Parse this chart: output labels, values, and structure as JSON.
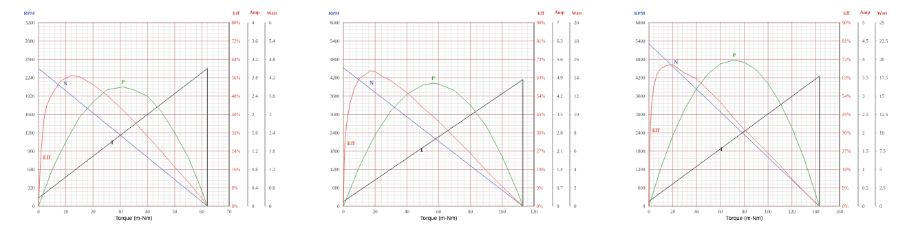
{
  "chart_data": [
    {
      "type": "line",
      "xlabel": "Torque (m-Nm)",
      "ylabel": "RPM",
      "y2label": "Eff",
      "y3label": "Amp",
      "grid": true,
      "xlim": [
        0,
        70
      ],
      "xticks": [
        0,
        10,
        20,
        30,
        40,
        50,
        60,
        70
      ],
      "ylim": [
        0,
        3200
      ],
      "yticks": [
        0,
        320,
        640,
        960,
        1280,
        1600,
        1920,
        2240,
        2560,
        2880,
        3200
      ],
      "y2lim": [
        0,
        80
      ],
      "y2ticks": [
        {
          "value": 0,
          "label": "0%"
        },
        {
          "value": 8,
          "label": "8%"
        },
        {
          "value": 16,
          "label": "16%"
        },
        {
          "value": 24,
          "label": "24%"
        },
        {
          "value": 32,
          "label": "32%"
        },
        {
          "value": 40,
          "label": "40%"
        },
        {
          "value": 48,
          "label": "48%"
        },
        {
          "value": 56,
          "label": "56%"
        },
        {
          "value": 64,
          "label": "64%"
        },
        {
          "value": 72,
          "label": "72%"
        },
        {
          "value": 80,
          "label": "80%"
        }
      ],
      "y3lim": [
        0,
        4
      ],
      "y3ticks": [
        0,
        0.4,
        0.8,
        1.2,
        1.6,
        2,
        2.4,
        2.8,
        3.2,
        3.6,
        4
      ],
      "series": [
        {
          "name": "N",
          "color": "#4a5cb0",
          "x": [
            0,
            62
          ],
          "values": [
            2400,
            0
          ]
        },
        {
          "name": "Eff",
          "color": "#e0584a",
          "axis": "y2",
          "x": [
            0,
            0.5,
            1,
            2,
            3,
            5,
            8,
            12,
            15,
            20,
            25,
            30,
            35,
            40,
            45,
            50,
            55,
            60,
            62
          ],
          "values": [
            0,
            14,
            25,
            38,
            44,
            49,
            54.5,
            57,
            56.5,
            53,
            48.5,
            43,
            37,
            30.5,
            24,
            17,
            10.5,
            3.5,
            0
          ]
        },
        {
          "name": "I",
          "color": "#222222",
          "axis": "y3",
          "x": [
            0,
            62,
            62
          ],
          "values": [
            0.18,
            3.0,
            0
          ]
        }
      ]
    },
    {
      "type": "line",
      "ylabel": "Watt",
      "tick_labels": "y",
      "xlim": [
        0,
        70
      ],
      "ylim": [
        0,
        6
      ],
      "yticks": [
        0,
        0.6,
        1.2,
        1.8,
        2.4,
        3,
        3.6,
        4.2,
        4.8,
        5.4,
        6
      ],
      "series": [
        {
          "name": "P",
          "color": "#4aa04a",
          "x": [
            0,
            5,
            10,
            15,
            20,
            25,
            31,
            35,
            40,
            45,
            50,
            55,
            60,
            62
          ],
          "values": [
            0,
            1.2,
            2.1,
            2.9,
            3.4,
            3.8,
            3.9,
            3.8,
            3.6,
            3.1,
            2.4,
            1.6,
            0.5,
            0
          ]
        }
      ]
    },
    {
      "type": "line",
      "xlabel": "Torque (m-Nm)",
      "ylabel": "RPM",
      "y2label": "Eff",
      "y3label": "Amp",
      "grid": true,
      "xlim": [
        0,
        120
      ],
      "xticks": [
        0,
        20,
        40,
        60,
        80,
        100,
        120
      ],
      "ylim": [
        0,
        6000
      ],
      "yticks": [
        0,
        600,
        1200,
        1800,
        2400,
        3000,
        3600,
        4200,
        4800,
        5400,
        6000
      ],
      "y2lim": [
        0,
        90
      ],
      "y2ticks": [
        {
          "value": 0,
          "label": "0%"
        },
        {
          "value": 9,
          "label": "9%"
        },
        {
          "value": 18,
          "label": "18%"
        },
        {
          "value": 27,
          "label": "27%"
        },
        {
          "value": 36,
          "label": "36%"
        },
        {
          "value": 45,
          "label": "45%"
        },
        {
          "value": 54,
          "label": "54%"
        },
        {
          "value": 63,
          "label": "63%"
        },
        {
          "value": 72,
          "label": "72%"
        },
        {
          "value": 81,
          "label": "81%"
        },
        {
          "value": 90,
          "label": "90%"
        }
      ],
      "y3lim": [
        0,
        7
      ],
      "y3ticks": [
        0,
        0.7,
        1.4,
        2.1,
        2.8,
        3.5,
        4.2,
        4.9,
        5.6,
        6.3,
        7
      ],
      "series": [
        {
          "name": "N",
          "color": "#4a5cb0",
          "x": [
            0,
            113
          ],
          "values": [
            4520,
            0
          ]
        },
        {
          "name": "Eff",
          "color": "#e0584a",
          "axis": "y2",
          "x": [
            0,
            0.5,
            1,
            2,
            4,
            7,
            10,
            17,
            20,
            25,
            30,
            40,
            50,
            60,
            70,
            80,
            90,
            100,
            110,
            113
          ],
          "values": [
            0,
            20,
            32,
            40,
            50,
            58,
            62.5,
            66.4,
            66,
            63.5,
            61.5,
            55.7,
            48.4,
            41.6,
            33.7,
            25.9,
            17.4,
            9.6,
            2.2,
            0
          ]
        },
        {
          "name": "I",
          "color": "#222222",
          "axis": "y3",
          "x": [
            0,
            113,
            113
          ],
          "values": [
            0.18,
            4.83,
            0
          ]
        }
      ]
    },
    {
      "type": "line",
      "ylabel": "Watt",
      "tick_labels": "y",
      "xlim": [
        0,
        120
      ],
      "ylim": [
        0,
        20
      ],
      "yticks": [
        0,
        2,
        4,
        6,
        8,
        10,
        12,
        14,
        16,
        18,
        20
      ],
      "series": [
        {
          "name": "P",
          "color": "#4aa04a",
          "x": [
            0,
            10,
            20,
            30,
            40,
            50,
            56.5,
            60,
            70,
            80,
            90,
            100,
            110,
            113
          ],
          "values": [
            0,
            4.3,
            7.8,
            10.4,
            12.2,
            13.2,
            13.4,
            13.3,
            12.6,
            11,
            8.7,
            5.4,
            1.4,
            0
          ]
        }
      ]
    },
    {
      "type": "line",
      "xlabel": "Torque (m-Nm)",
      "ylabel": "RPM",
      "y2label": "Eff",
      "y3label": "Amp",
      "grid": true,
      "xlim": [
        0,
        160
      ],
      "xticks": [
        0,
        20,
        40,
        60,
        80,
        100,
        120,
        140,
        160
      ],
      "ylim": [
        0,
        6000
      ],
      "yticks": [
        0,
        600,
        1200,
        1800,
        2400,
        3000,
        3600,
        4200,
        4800,
        5400,
        6000
      ],
      "y2lim": [
        0,
        90
      ],
      "y2ticks": [
        {
          "value": 0,
          "label": "0%"
        },
        {
          "value": 9,
          "label": "9%"
        },
        {
          "value": 18,
          "label": "18%"
        },
        {
          "value": 27,
          "label": "27%"
        },
        {
          "value": 36,
          "label": "36%"
        },
        {
          "value": 45,
          "label": "45%"
        },
        {
          "value": 54,
          "label": "54%"
        },
        {
          "value": 63,
          "label": "63%"
        },
        {
          "value": 72,
          "label": "72%"
        },
        {
          "value": 81,
          "label": "81%"
        },
        {
          "value": 90,
          "label": "90%"
        }
      ],
      "y3lim": [
        0,
        5
      ],
      "y3ticks": [
        0,
        0.5,
        1,
        1.5,
        2,
        2.5,
        3,
        3.5,
        4,
        4.5,
        5
      ],
      "series": [
        {
          "name": "N",
          "color": "#4a5cb0",
          "x": [
            0,
            143
          ],
          "values": [
            5310,
            0
          ]
        },
        {
          "name": "Eff",
          "color": "#e0584a",
          "axis": "y2",
          "x": [
            0,
            0.5,
            1,
            2,
            4,
            7,
            10,
            15,
            20,
            30,
            40,
            50,
            60,
            70,
            80,
            90,
            100,
            110,
            120,
            130,
            140,
            143
          ],
          "values": [
            0,
            22,
            35,
            48,
            59,
            65,
            67.5,
            69,
            69.4,
            65.3,
            62.4,
            56.8,
            51,
            44,
            37.5,
            32,
            26,
            20,
            13.5,
            7.3,
            1.5,
            0
          ]
        },
        {
          "name": "I",
          "color": "#222222",
          "axis": "y3",
          "x": [
            0,
            143,
            143
          ],
          "values": [
            0.13,
            3.54,
            0
          ]
        }
      ]
    },
    {
      "type": "line",
      "ylabel": "Watt",
      "tick_labels": "y",
      "xlim": [
        0,
        160
      ],
      "ylim": [
        0,
        25
      ],
      "yticks": [
        0,
        2.5,
        5,
        7.5,
        10,
        12.5,
        15,
        17.5,
        20,
        22.5,
        25
      ],
      "series": [
        {
          "name": "P",
          "color": "#4aa04a",
          "x": [
            0,
            10,
            20,
            30,
            40,
            50,
            60,
            71.5,
            80,
            90,
            100,
            110,
            120,
            130,
            140,
            143
          ],
          "values": [
            0,
            5.2,
            9.6,
            13.2,
            16,
            18.1,
            19.4,
            19.9,
            19.6,
            18.6,
            16.7,
            14.1,
            10.7,
            6.6,
            1.6,
            0
          ]
        }
      ]
    }
  ]
}
